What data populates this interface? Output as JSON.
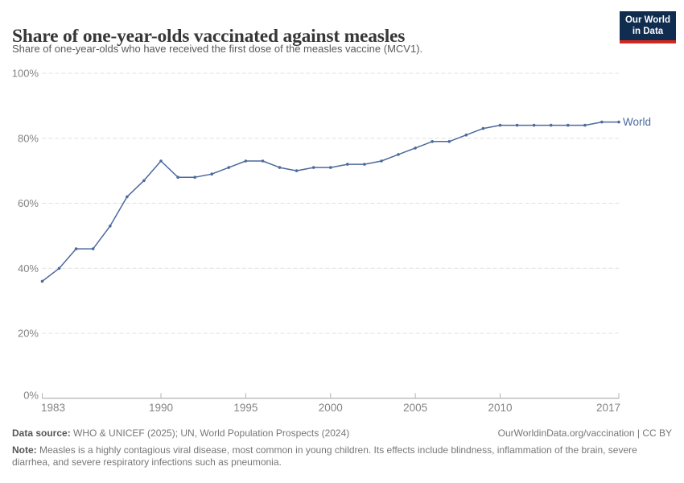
{
  "header": {
    "title": "Share of one-year-olds vaccinated against measles",
    "subtitle": "Share of one-year-olds who have received the first dose of the measles vaccine (MCV1)."
  },
  "logo": {
    "line1": "Our World",
    "line2": "in Data",
    "bg_color": "#102d50",
    "accent_color": "#d2271e"
  },
  "chart_data": {
    "type": "line",
    "title": "Share of one-year-olds vaccinated against measles",
    "xlabel": "",
    "ylabel": "",
    "x": [
      1983,
      1984,
      1985,
      1986,
      1987,
      1988,
      1989,
      1990,
      1991,
      1992,
      1993,
      1994,
      1995,
      1996,
      1997,
      1998,
      1999,
      2000,
      2001,
      2002,
      2003,
      2004,
      2005,
      2006,
      2007,
      2008,
      2009,
      2010,
      2011,
      2012,
      2013,
      2014,
      2015,
      2016,
      2017
    ],
    "series": [
      {
        "name": "World",
        "color": "#4C6A9C",
        "values": [
          36,
          40,
          46,
          46,
          53,
          62,
          67,
          73,
          68,
          68,
          69,
          71,
          73,
          73,
          71,
          70,
          71,
          71,
          72,
          72,
          73,
          75,
          77,
          79,
          79,
          81,
          83,
          84,
          84,
          84,
          84,
          84,
          84,
          85,
          85
        ]
      }
    ],
    "ylim": [
      0,
      100
    ],
    "xlim": [
      1983,
      2017
    ],
    "yticks": [
      {
        "value": 0,
        "label": "0%"
      },
      {
        "value": 20,
        "label": "20%"
      },
      {
        "value": 40,
        "label": "40%"
      },
      {
        "value": 60,
        "label": "60%"
      },
      {
        "value": 80,
        "label": "80%"
      },
      {
        "value": 100,
        "label": "100%"
      }
    ],
    "xticks": [
      {
        "value": 1983,
        "label": "1983"
      },
      {
        "value": 1990,
        "label": "1990"
      },
      {
        "value": 1995,
        "label": "1995"
      },
      {
        "value": 2000,
        "label": "2000"
      },
      {
        "value": 2005,
        "label": "2005"
      },
      {
        "value": 2010,
        "label": "2010"
      },
      {
        "value": 2017,
        "label": "2017"
      }
    ],
    "grid": "horizontal-dashed",
    "legend": "line-end-label"
  },
  "colors": {
    "line": "#4C6A9C",
    "gridline": "#e0e0e0",
    "axis": "#9f9f9f",
    "tick": "#b3b3b3",
    "tick_text": "#848484"
  },
  "footer": {
    "data_source_label": "Data source:",
    "data_source": " WHO & UNICEF (2025); UN, World Population Prospects (2024)",
    "attribution": "OurWorldinData.org/vaccination | CC BY",
    "note_label": "Note:",
    "note": " Measles is a highly contagious viral disease, most common in young children. Its effects include blindness, inflammation of the brain, severe diarrhea, and severe respiratory infections such as pneumonia."
  }
}
